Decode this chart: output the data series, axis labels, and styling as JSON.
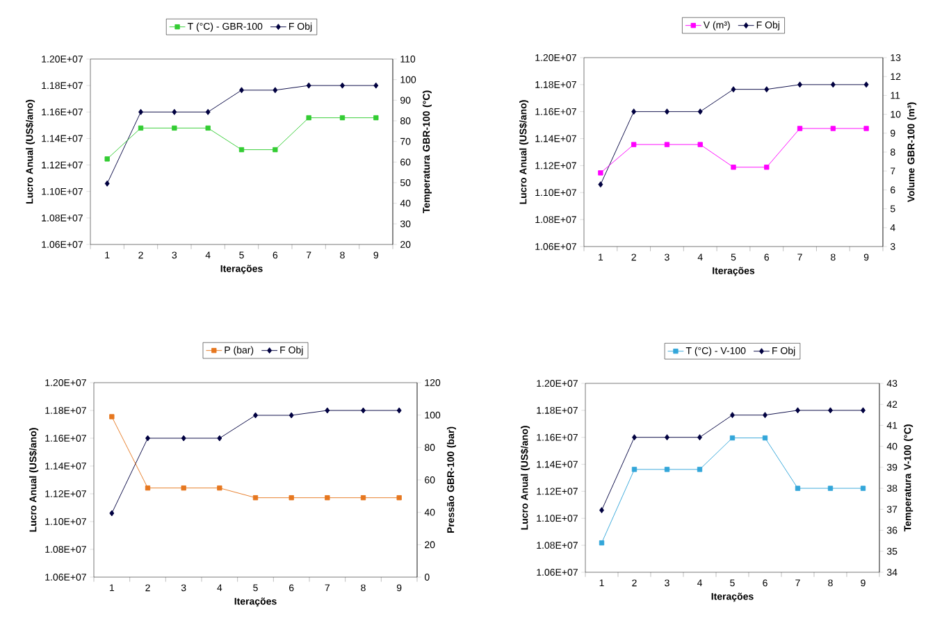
{
  "chart_data": [
    {
      "type": "line",
      "categories": [
        "1",
        "2",
        "3",
        "4",
        "5",
        "6",
        "7",
        "8",
        "9"
      ],
      "xlabel": "Iterações",
      "ylabel": "Lucro Anual (US$/ano)",
      "y2label": "Temperatura GBR-100 (°C)",
      "ylim": [
        10600000,
        12000000
      ],
      "yticks": [
        {
          "value": 10600000,
          "label": "1.06E+07"
        },
        {
          "value": 10800000,
          "label": "1.08E+07"
        },
        {
          "value": 11000000,
          "label": "1.10E+07"
        },
        {
          "value": 11200000,
          "label": "1.12E+07"
        },
        {
          "value": 11400000,
          "label": "1.14E+07"
        },
        {
          "value": 11600000,
          "label": "1.16E+07"
        },
        {
          "value": 11800000,
          "label": "1.18E+07"
        },
        {
          "value": 12000000,
          "label": "1.20E+07"
        }
      ],
      "y2lim": [
        20,
        110
      ],
      "y2ticks": [
        20,
        30,
        40,
        50,
        60,
        70,
        80,
        90,
        100,
        110
      ],
      "legend": "top",
      "series": [
        {
          "name": "T (°C) - GBR-100",
          "color": "#33cc33",
          "marker": "square",
          "axis": "y2",
          "values": [
            61.5,
            76.5,
            76.5,
            76.5,
            66,
            66,
            81.5,
            81.5,
            81.5
          ]
        },
        {
          "name": "F Obj",
          "color": "#000040",
          "marker": "diamond",
          "values": [
            11060000,
            11600000,
            11600000,
            11600000,
            11765000,
            11765000,
            11800000,
            11800000,
            11800000
          ]
        }
      ]
    },
    {
      "type": "line",
      "categories": [
        "1",
        "2",
        "3",
        "4",
        "5",
        "6",
        "7",
        "8",
        "9"
      ],
      "xlabel": "Iterações",
      "ylabel": "Lucro Anual (US$/ano)",
      "y2label": "Volume GBR-100 (m³)",
      "ylim": [
        10600000,
        12000000
      ],
      "yticks": [
        {
          "value": 10600000,
          "label": "1.06E+07"
        },
        {
          "value": 10800000,
          "label": "1.08E+07"
        },
        {
          "value": 11000000,
          "label": "1.10E+07"
        },
        {
          "value": 11200000,
          "label": "1.12E+07"
        },
        {
          "value": 11400000,
          "label": "1.14E+07"
        },
        {
          "value": 11600000,
          "label": "1.16E+07"
        },
        {
          "value": 11800000,
          "label": "1.18E+07"
        },
        {
          "value": 12000000,
          "label": "1.20E+07"
        }
      ],
      "y2lim": [
        3,
        13
      ],
      "y2ticks": [
        3,
        4,
        5,
        6,
        7,
        8,
        9,
        10,
        11,
        12,
        13
      ],
      "legend": "top",
      "series": [
        {
          "name": "V (m³)",
          "color": "#ff00ff",
          "marker": "square",
          "axis": "y2",
          "values": [
            6.9,
            8.4,
            8.4,
            8.4,
            7.2,
            7.2,
            9.25,
            9.25,
            9.25
          ]
        },
        {
          "name": "F Obj",
          "color": "#000040",
          "marker": "diamond",
          "values": [
            11060000,
            11600000,
            11600000,
            11600000,
            11765000,
            11765000,
            11800000,
            11800000,
            11800000
          ]
        }
      ]
    },
    {
      "type": "line",
      "categories": [
        "1",
        "2",
        "3",
        "4",
        "5",
        "6",
        "7",
        "8",
        "9"
      ],
      "xlabel": "Iterações",
      "ylabel": "Lucro Anual (US$/ano)",
      "y2label": "Pressão GBR-100 (bar)",
      "ylim": [
        10600000,
        12000000
      ],
      "yticks": [
        {
          "value": 10600000,
          "label": "1.06E+07"
        },
        {
          "value": 10800000,
          "label": "1.08E+07"
        },
        {
          "value": 11000000,
          "label": "1.10E+07"
        },
        {
          "value": 11200000,
          "label": "1.12E+07"
        },
        {
          "value": 11400000,
          "label": "1.14E+07"
        },
        {
          "value": 11600000,
          "label": "1.16E+07"
        },
        {
          "value": 11800000,
          "label": "1.18E+07"
        },
        {
          "value": 12000000,
          "label": "1.20E+07"
        }
      ],
      "y2lim": [
        0,
        120
      ],
      "y2ticks": [
        0,
        20,
        40,
        60,
        80,
        100,
        120
      ],
      "legend": "top",
      "series": [
        {
          "name": "P (bar)",
          "color": "#e6771f",
          "marker": "square",
          "axis": "y2",
          "values": [
            99,
            55,
            55,
            55,
            49,
            49,
            49,
            49,
            49
          ]
        },
        {
          "name": "F Obj",
          "color": "#000040",
          "marker": "diamond",
          "values": [
            11060000,
            11600000,
            11600000,
            11600000,
            11765000,
            11765000,
            11800000,
            11800000,
            11800000
          ]
        }
      ]
    },
    {
      "type": "line",
      "categories": [
        "1",
        "2",
        "3",
        "4",
        "5",
        "6",
        "7",
        "8",
        "9"
      ],
      "xlabel": "Iterações",
      "ylabel": "Lucro Anual (US$/ano)",
      "y2label": "Temperatura V-100 (°C)",
      "ylim": [
        10600000,
        12000000
      ],
      "yticks": [
        {
          "value": 10600000,
          "label": "1.06E+07"
        },
        {
          "value": 10800000,
          "label": "1.08E+07"
        },
        {
          "value": 11000000,
          "label": "1.10E+07"
        },
        {
          "value": 11200000,
          "label": "1.12E+07"
        },
        {
          "value": 11400000,
          "label": "1.14E+07"
        },
        {
          "value": 11600000,
          "label": "1.16E+07"
        },
        {
          "value": 11800000,
          "label": "1.18E+07"
        },
        {
          "value": 12000000,
          "label": "1.20E+07"
        }
      ],
      "y2lim": [
        34,
        43
      ],
      "y2ticks": [
        34,
        35,
        36,
        37,
        38,
        39,
        40,
        41,
        42,
        43
      ],
      "legend": "top",
      "series": [
        {
          "name": "T (°C) - V-100",
          "color": "#33a6d9",
          "marker": "square",
          "axis": "y2",
          "values": [
            35.4,
            38.9,
            38.9,
            38.9,
            40.4,
            40.4,
            38.0,
            38.0,
            38.0
          ]
        },
        {
          "name": "F Obj",
          "color": "#000040",
          "marker": "diamond",
          "values": [
            11060000,
            11600000,
            11600000,
            11600000,
            11765000,
            11765000,
            11800000,
            11800000,
            11800000
          ]
        }
      ]
    }
  ]
}
